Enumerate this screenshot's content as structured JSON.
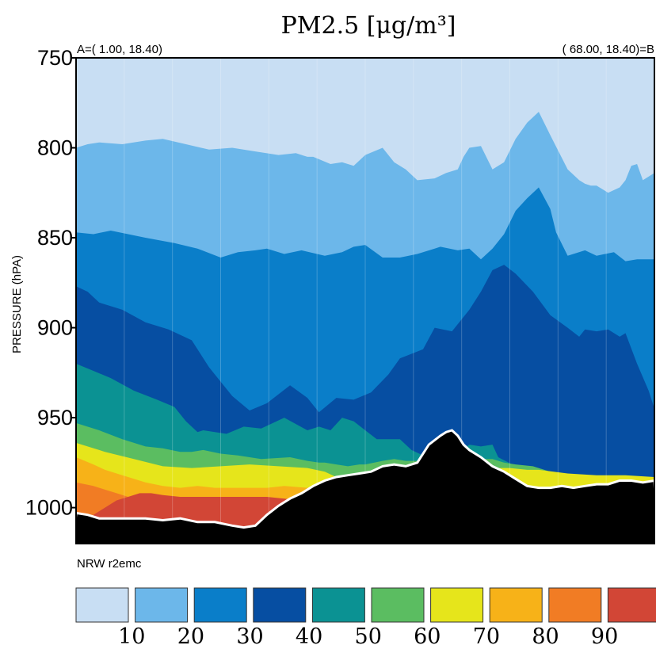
{
  "chart_data": {
    "type": "cross-section-contour",
    "title": "PM2.5 [μg/m³]",
    "ylabel": "PRESSURE (hPA)",
    "point_a_label": "A=(  1.00, 18.40)",
    "point_b_label": "( 68.00, 18.40)=B",
    "model_label": "NRW  r2emc",
    "y_ticks": [
      "750",
      "800",
      "850",
      "900",
      "950",
      "1000"
    ],
    "ylim": [
      750,
      1020
    ],
    "x_range": [
      0,
      100
    ],
    "levels": [
      10,
      20,
      30,
      40,
      50,
      60,
      70,
      80,
      90
    ],
    "level_labels": [
      "10",
      "20",
      "30",
      "40",
      "50",
      "60",
      "70",
      "80",
      "90"
    ],
    "colors": [
      "#c8def3",
      "#6cb7ea",
      "#0a7ec9",
      "#064ea2",
      "#0b9293",
      "#5bbd61",
      "#e6e51b",
      "#f7b218",
      "#f17c24",
      "#d24636"
    ],
    "contours": [
      {
        "level": 10,
        "x": [
          0,
          2,
          4,
          8,
          12,
          15,
          19,
          23,
          27,
          31,
          35,
          38,
          40,
          41,
          44,
          46,
          48,
          50,
          53,
          55,
          57,
          59,
          62,
          64,
          66,
          67,
          68,
          70,
          72,
          74,
          76,
          78,
          80,
          82,
          85,
          87,
          88,
          89,
          90,
          92,
          94,
          95,
          96,
          97,
          98,
          100
        ],
        "p": [
          800,
          798,
          797,
          798,
          796,
          795,
          798,
          801,
          800,
          802,
          804,
          803,
          805,
          805,
          809,
          808,
          810,
          804,
          800,
          808,
          812,
          818,
          817,
          814,
          812,
          805,
          800,
          799,
          812,
          808,
          795,
          786,
          780,
          793,
          812,
          818,
          820,
          821,
          821,
          825,
          822,
          818,
          810,
          809,
          818,
          814
        ]
      },
      {
        "level": 20,
        "x": [
          0,
          3,
          6,
          12,
          17,
          21,
          25,
          28,
          31,
          33,
          36,
          39,
          43,
          46,
          48,
          50,
          53,
          56,
          59,
          62,
          63,
          66,
          68,
          70,
          72,
          74,
          76,
          78,
          80,
          82,
          83,
          85,
          88,
          90,
          93,
          95,
          97,
          100
        ],
        "p": [
          847,
          848,
          846,
          850,
          853,
          856,
          861,
          858,
          857,
          856,
          859,
          857,
          860,
          858,
          855,
          854,
          861,
          861,
          859,
          856,
          855,
          857,
          856,
          862,
          856,
          848,
          835,
          828,
          822,
          834,
          847,
          860,
          857,
          860,
          858,
          863,
          862,
          862
        ]
      },
      {
        "level": 30,
        "x": [
          0,
          2,
          4,
          8,
          12,
          16,
          20,
          23,
          27,
          30,
          33,
          37,
          40,
          42,
          45,
          48,
          51,
          54,
          56,
          60,
          62,
          65,
          68,
          70,
          72,
          74,
          76,
          79,
          82,
          85,
          87,
          88,
          90,
          92,
          94,
          95,
          97,
          99,
          100
        ],
        "p": [
          877,
          880,
          886,
          890,
          897,
          901,
          907,
          922,
          938,
          946,
          942,
          932,
          939,
          947,
          939,
          940,
          936,
          926,
          917,
          912,
          900,
          902,
          890,
          880,
          868,
          865,
          870,
          880,
          893,
          900,
          905,
          901,
          902,
          901,
          905,
          903,
          920,
          935,
          945
        ]
      },
      {
        "level": 40,
        "x": [
          0,
          3,
          6,
          10,
          14,
          17,
          19,
          21,
          22,
          24,
          26,
          29,
          32,
          36,
          40,
          42,
          44,
          46,
          48,
          50,
          52,
          54,
          56,
          58,
          60,
          61,
          64,
          66,
          67,
          68,
          70,
          72,
          73,
          76,
          79,
          82,
          84,
          86,
          88,
          90,
          93,
          95,
          97,
          100
        ],
        "p": [
          920,
          924,
          928,
          935,
          940,
          944,
          952,
          958,
          957,
          958,
          959,
          955,
          956,
          950,
          957,
          955,
          957,
          950,
          952,
          957,
          962,
          962,
          962,
          968,
          971,
          975,
          971,
          970,
          967,
          965,
          966,
          965,
          972,
          977,
          981,
          984,
          985,
          986,
          986,
          987,
          986,
          985,
          984,
          984
        ]
      },
      {
        "level": 50,
        "x": [
          0,
          4,
          8,
          12,
          15,
          18,
          20,
          22,
          25,
          28,
          32,
          37,
          40,
          42,
          43,
          45,
          47,
          49,
          50,
          53,
          55,
          57,
          59,
          61,
          62,
          64,
          66,
          68,
          70,
          72,
          74,
          76,
          79,
          82,
          85,
          87,
          88,
          90,
          92,
          94,
          96,
          98,
          100
        ],
        "p": [
          953,
          957,
          962,
          966,
          967,
          969,
          969,
          968,
          970,
          971,
          973,
          972,
          974,
          975,
          975,
          976,
          977,
          976,
          976,
          974,
          973,
          974,
          974,
          973,
          974,
          974,
          974,
          973,
          973,
          973,
          975,
          976,
          977,
          980,
          983,
          984,
          985,
          986,
          986,
          987,
          986,
          985,
          984
        ]
      },
      {
        "level": 60,
        "x": [
          0,
          5,
          10,
          15,
          20,
          25,
          30,
          35,
          40,
          43,
          45,
          48,
          50,
          52,
          55,
          58,
          60,
          63,
          65,
          68,
          70,
          72,
          75,
          78,
          80,
          85,
          90,
          95,
          100
        ],
        "p": [
          964,
          969,
          973,
          977,
          978,
          977,
          976,
          977,
          978,
          980,
          983,
          983,
          982,
          981,
          980,
          979,
          978,
          978,
          979,
          979,
          978,
          978,
          978,
          979,
          979,
          981,
          982,
          982,
          983
        ]
      },
      {
        "level": 70,
        "x": [
          0,
          3,
          5,
          8,
          10,
          12,
          15,
          18,
          21,
          24,
          27,
          30,
          33,
          36,
          40,
          42,
          44,
          46,
          48,
          50,
          54,
          58,
          62,
          65,
          68,
          70,
          73,
          76,
          80,
          85,
          88,
          90,
          95,
          100
        ],
        "p": [
          972,
          976,
          979,
          982,
          984,
          986,
          988,
          989,
          988,
          989,
          989,
          989,
          989,
          988,
          989,
          990,
          991,
          991,
          991,
          990,
          989,
          988,
          988,
          989,
          989,
          990,
          990,
          990,
          991,
          991,
          992,
          993,
          993,
          993
        ]
      },
      {
        "level": 80,
        "x": [
          0,
          3,
          5,
          7,
          9,
          11,
          13,
          15,
          18,
          21,
          24,
          27,
          30,
          33,
          36,
          40,
          42,
          44,
          46,
          48,
          50,
          55,
          60,
          65,
          70,
          75,
          80,
          85,
          90,
          95,
          100
        ],
        "p": [
          986,
          988,
          990,
          992,
          994,
          995,
          995,
          994,
          994,
          994,
          994,
          994,
          994,
          995,
          995,
          996,
          997,
          998,
          998,
          998,
          998,
          998,
          998,
          998,
          998,
          998,
          998,
          998,
          998,
          998,
          998
        ]
      },
      {
        "level": 90,
        "x": [
          3,
          5,
          7,
          9,
          11,
          13,
          15,
          18,
          21,
          24,
          27,
          30,
          33,
          36,
          38,
          40,
          42,
          44,
          46,
          48,
          50,
          55,
          60,
          65,
          70,
          75,
          80,
          85,
          90,
          95,
          100
        ],
        "p": [
          1004,
          1000,
          996,
          994,
          992,
          992,
          993,
          994,
          994,
          994,
          994,
          994,
          994,
          995,
          996,
          997,
          998,
          999,
          999,
          999,
          999,
          999,
          999,
          999,
          999,
          999,
          999,
          999,
          999,
          999,
          999
        ]
      }
    ],
    "terrain": {
      "x": [
        0,
        2,
        4,
        6,
        8,
        10,
        12,
        15,
        18,
        21,
        24,
        27,
        29,
        31,
        33,
        35,
        37,
        39,
        41,
        43,
        45,
        47,
        49,
        51,
        53,
        55,
        57,
        59,
        61,
        63,
        64,
        65,
        66,
        67,
        68,
        70,
        72,
        74,
        76,
        78,
        80,
        82,
        84,
        86,
        88,
        90,
        92,
        94,
        96,
        98,
        100
      ],
      "p": [
        1003,
        1004,
        1006,
        1006,
        1006,
        1006,
        1006,
        1007,
        1006,
        1008,
        1008,
        1010,
        1011,
        1010,
        1004,
        999,
        995,
        992,
        988,
        985,
        983,
        982,
        981,
        980,
        977,
        976,
        977,
        975,
        965,
        960,
        958,
        957,
        960,
        965,
        968,
        972,
        977,
        980,
        984,
        988,
        989,
        989,
        988,
        989,
        988,
        987,
        987,
        985,
        985,
        986,
        985
      ]
    }
  }
}
